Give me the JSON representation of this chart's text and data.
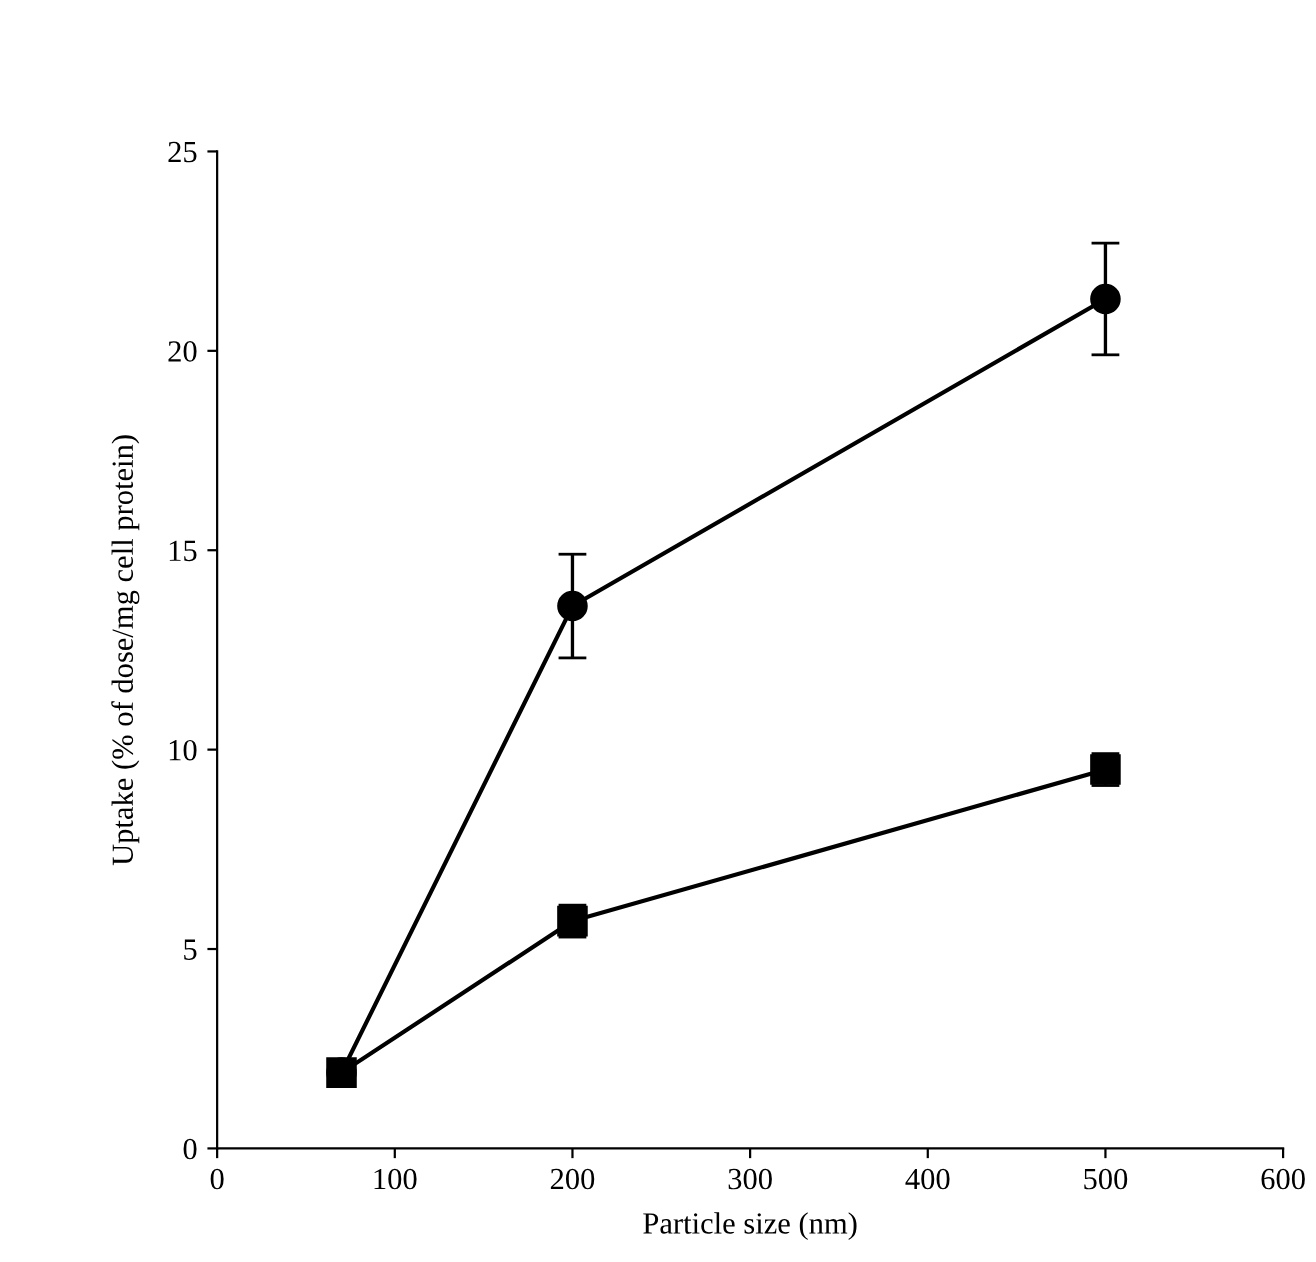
{
  "chart_data": {
    "type": "line",
    "xlabel": "Particle size (nm)",
    "ylabel": "Uptake (% of dose/mg cell protein)",
    "xlim": [
      0,
      600
    ],
    "ylim": [
      0,
      25
    ],
    "xticks": [
      0,
      100,
      200,
      300,
      400,
      500,
      600
    ],
    "yticks": [
      0,
      5,
      10,
      15,
      20,
      25
    ],
    "grid": false,
    "legend": false,
    "line_style": "solid",
    "series": [
      {
        "color": "#000000",
        "marker": "circle",
        "x": [
          70,
          200,
          500
        ],
        "values": [
          1.9,
          13.6,
          21.3
        ],
        "errors": [
          null,
          1.3,
          1.4
        ]
      },
      {
        "color": "#000000",
        "marker": "square",
        "x": [
          70,
          200,
          500
        ],
        "values": [
          1.9,
          5.7,
          9.5
        ],
        "errors": [
          null,
          0.4,
          0.4
        ]
      }
    ]
  }
}
